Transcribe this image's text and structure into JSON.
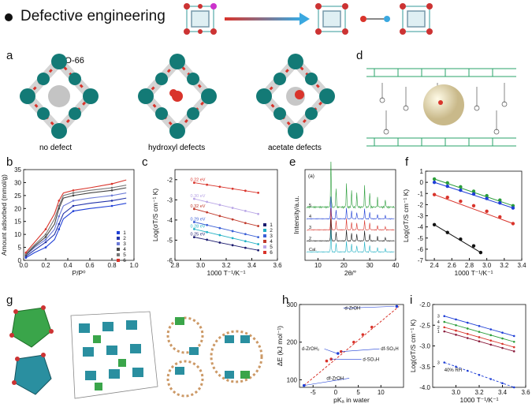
{
  "header": {
    "title": "Defective engineering"
  },
  "panels": {
    "a": {
      "label": "a",
      "uio": "UiO-66",
      "captions": [
        "no defect",
        "hydroxyl defects",
        "acetate defects"
      ]
    },
    "b": {
      "label": "b"
    },
    "c": {
      "label": "c"
    },
    "d": {
      "label": "d"
    },
    "e": {
      "label": "e"
    },
    "f": {
      "label": "f"
    },
    "g": {
      "label": "g"
    },
    "h": {
      "label": "h"
    },
    "i": {
      "label": "i"
    }
  },
  "colors": {
    "teal": "#137a76",
    "red": "#d9342b",
    "blue": "#1f3fd6",
    "green": "#2a9d3a",
    "grey": "#888888"
  },
  "chart_data": [
    {
      "id": "b",
      "type": "line",
      "xlabel": "P/P⁰",
      "ylabel": "Amount adsorbed (mmol/g)",
      "xlim": [
        0.0,
        1.0
      ],
      "ylim": [
        0,
        35
      ],
      "xticks": [
        "0.0",
        "0.2",
        "0.4",
        "0.6",
        "0.8",
        "1.0"
      ],
      "yticks": [
        "0",
        "5",
        "10",
        "15",
        "20",
        "25",
        "30",
        "35"
      ],
      "legend": [
        "1",
        "2",
        "3",
        "4",
        "5",
        "6"
      ],
      "series": [
        {
          "name": "1",
          "color": "#1f3fd6",
          "x": [
            0.02,
            0.1,
            0.2,
            0.28,
            0.32,
            0.36,
            0.45,
            0.6,
            0.8,
            0.93
          ],
          "y": [
            1,
            3,
            5,
            8,
            12,
            16,
            19,
            20,
            21,
            22
          ]
        },
        {
          "name": "2",
          "color": "#2233aa",
          "x": [
            0.02,
            0.1,
            0.2,
            0.28,
            0.32,
            0.36,
            0.45,
            0.6,
            0.8,
            0.93
          ],
          "y": [
            1.5,
            4,
            7,
            10,
            14,
            18,
            21,
            22,
            23,
            24
          ]
        },
        {
          "name": "3",
          "color": "#6b7ad6",
          "x": [
            0.02,
            0.1,
            0.2,
            0.28,
            0.32,
            0.36,
            0.45,
            0.6,
            0.8,
            0.93
          ],
          "y": [
            2,
            5,
            8,
            12,
            17,
            21,
            23,
            24,
            25,
            26
          ]
        },
        {
          "name": "4",
          "color": "#444444",
          "x": [
            0.02,
            0.1,
            0.2,
            0.28,
            0.32,
            0.36,
            0.45,
            0.6,
            0.8,
            0.93
          ],
          "y": [
            2,
            5.5,
            9,
            14,
            20,
            24,
            25,
            26,
            27,
            28
          ]
        },
        {
          "name": "5",
          "color": "#777777",
          "x": [
            0.02,
            0.1,
            0.2,
            0.28,
            0.32,
            0.36,
            0.45,
            0.6,
            0.8,
            0.93
          ],
          "y": [
            2.5,
            6,
            10,
            16,
            21,
            25,
            26,
            27,
            28,
            29
          ]
        },
        {
          "name": "6",
          "color": "#d9342b",
          "x": [
            0.02,
            0.1,
            0.2,
            0.28,
            0.32,
            0.36,
            0.45,
            0.6,
            0.8,
            0.93
          ],
          "y": [
            3,
            7,
            12,
            18,
            23,
            26,
            27,
            28,
            29.5,
            31
          ]
        }
      ]
    },
    {
      "id": "c",
      "type": "line",
      "xlabel": "1000 T⁻¹/K⁻¹",
      "ylabel": "Log(σT/S cm⁻¹ K)",
      "xlim": [
        2.8,
        3.6
      ],
      "ylim": [
        -6,
        -1.5
      ],
      "xticks": [
        "2.8",
        "3.0",
        "3.2",
        "3.4",
        "3.6"
      ],
      "yticks": [
        "-2",
        "-3",
        "-4",
        "-5",
        "-6"
      ],
      "legend": [
        "1",
        "2",
        "3",
        "4",
        "5",
        "6"
      ],
      "annotations": [
        "0.22 eV",
        "0.30 eV",
        "0.32 eV",
        "0.29 eV",
        "0.28 eV",
        "0.25 eV"
      ],
      "series": [
        {
          "name": "6",
          "color": "#d9342b",
          "x": [
            2.95,
            3.05,
            3.15,
            3.25,
            3.35,
            3.45
          ],
          "y": [
            -2.15,
            -2.25,
            -2.35,
            -2.45,
            -2.55,
            -2.65
          ]
        },
        {
          "name": "5",
          "color": "#b9a6e6",
          "x": [
            2.95,
            3.05,
            3.15,
            3.25,
            3.35,
            3.45
          ],
          "y": [
            -2.95,
            -3.1,
            -3.25,
            -3.4,
            -3.55,
            -3.7
          ]
        },
        {
          "name": "4",
          "color": "#c0392b",
          "x": [
            2.95,
            3.05,
            3.15,
            3.25,
            3.35,
            3.45
          ],
          "y": [
            -3.45,
            -3.62,
            -3.8,
            -3.97,
            -4.15,
            -4.3
          ]
        },
        {
          "name": "3",
          "color": "#3a5fd6",
          "x": [
            2.95,
            3.05,
            3.15,
            3.25,
            3.35,
            3.45
          ],
          "y": [
            -4.1,
            -4.25,
            -4.4,
            -4.55,
            -4.7,
            -4.85
          ]
        },
        {
          "name": "2",
          "color": "#21b0c4",
          "x": [
            2.95,
            3.05,
            3.15,
            3.25,
            3.35,
            3.45
          ],
          "y": [
            -4.45,
            -4.6,
            -4.75,
            -4.9,
            -5.05,
            -5.2
          ]
        },
        {
          "name": "1",
          "color": "#1a1a6e",
          "x": [
            2.95,
            3.05,
            3.15,
            3.25,
            3.35,
            3.45
          ],
          "y": [
            -4.85,
            -4.98,
            -5.12,
            -5.25,
            -5.38,
            -5.5
          ]
        }
      ]
    },
    {
      "id": "e",
      "type": "line",
      "xlabel": "2θ/°",
      "ylabel": "Intensity/a.u.",
      "xlim": [
        5,
        40
      ],
      "xticks": [
        "10",
        "20",
        "30",
        "40"
      ],
      "traces": [
        "5",
        "4",
        "3",
        "2",
        "Cal."
      ],
      "note": "(a)"
    },
    {
      "id": "f",
      "type": "scatter",
      "xlabel": "1000 T⁻¹/K⁻¹",
      "ylabel": "Log(σT/S cm⁻¹ K)",
      "xlim": [
        2.3,
        3.4
      ],
      "ylim": [
        -7,
        1
      ],
      "xticks": [
        "2.4",
        "2.6",
        "2.8",
        "3.0",
        "3.2",
        "3.4"
      ],
      "yticks": [
        "1",
        "0",
        "-1",
        "-2",
        "-3",
        "-4",
        "-5",
        "-6",
        "-7"
      ],
      "series": [
        {
          "color": "#2a9d3a",
          "x": [
            2.4,
            2.55,
            2.7,
            2.85,
            3.0,
            3.15,
            3.3
          ],
          "y": [
            0.3,
            -0.05,
            -0.4,
            -0.8,
            -1.2,
            -1.6,
            -2.1
          ]
        },
        {
          "color": "#1f3fd6",
          "x": [
            2.4,
            2.55,
            2.7,
            2.85,
            3.0,
            3.15,
            3.3
          ],
          "y": [
            0.0,
            -0.35,
            -0.7,
            -1.05,
            -1.45,
            -1.85,
            -2.3
          ]
        },
        {
          "color": "#d9342b",
          "x": [
            2.4,
            2.55,
            2.7,
            2.85,
            3.0,
            3.15,
            3.3
          ],
          "y": [
            -1.1,
            -1.35,
            -1.7,
            -2.1,
            -2.6,
            -3.1,
            -3.7
          ]
        },
        {
          "color": "#111111",
          "x": [
            2.4,
            2.55,
            2.7,
            2.85,
            2.93
          ],
          "y": [
            -3.8,
            -4.5,
            -5.1,
            -5.7,
            -6.3
          ]
        }
      ]
    },
    {
      "id": "h",
      "type": "scatter",
      "xlabel": "pKₐ in water",
      "ylabel": "ΔE (kJ mol⁻¹)",
      "xlim": [
        -8,
        15
      ],
      "ylim": [
        80,
        300
      ],
      "xticks": [
        "-5",
        "0",
        "5",
        "10"
      ],
      "yticks": [
        "100",
        "200",
        "300"
      ],
      "labels": [
        "d-ZrOH",
        "d-ZrOH₂",
        "df-SO₃H",
        "d-SO₃H",
        "df-ZrOH"
      ]
    },
    {
      "id": "i",
      "type": "line",
      "xlabel": "1000 T⁻¹/K⁻¹",
      "ylabel": "Log(σT/S cm⁻¹ K)",
      "xlim": [
        2.8,
        3.6
      ],
      "ylim": [
        -4.0,
        -2.0
      ],
      "xticks": [
        "3.0",
        "3.2",
        "3.4",
        "3.6"
      ],
      "yticks": [
        "-2.0",
        "-2.5",
        "-3.0",
        "-3.5",
        "-4.0"
      ],
      "annotation": "40% RH",
      "series": [
        {
          "name": "3",
          "color": "#1f3fd6",
          "x": [
            2.9,
            3.0,
            3.1,
            3.2,
            3.3,
            3.4,
            3.5
          ],
          "y": [
            -2.28,
            -2.36,
            -2.44,
            -2.52,
            -2.6,
            -2.68,
            -2.76
          ]
        },
        {
          "name": "4",
          "color": "#2a9d3a",
          "x": [
            2.9,
            3.0,
            3.1,
            3.2,
            3.3,
            3.4,
            3.5
          ],
          "y": [
            -2.42,
            -2.5,
            -2.58,
            -2.66,
            -2.74,
            -2.82,
            -2.9
          ]
        },
        {
          "name": "2",
          "color": "#d9342b",
          "x": [
            2.9,
            3.0,
            3.1,
            3.2,
            3.3,
            3.4,
            3.5
          ],
          "y": [
            -2.55,
            -2.63,
            -2.71,
            -2.79,
            -2.87,
            -2.95,
            -3.03
          ]
        },
        {
          "name": "1",
          "color": "#8a1a3a",
          "x": [
            2.9,
            3.0,
            3.1,
            3.2,
            3.3,
            3.4,
            3.5
          ],
          "y": [
            -2.65,
            -2.73,
            -2.81,
            -2.89,
            -2.97,
            -3.05,
            -3.13
          ]
        },
        {
          "name": "3",
          "color": "#1f3fd6",
          "dashed": true,
          "x": [
            2.9,
            3.0,
            3.1,
            3.2,
            3.3,
            3.4,
            3.5
          ],
          "y": [
            -3.4,
            -3.5,
            -3.6,
            -3.7,
            -3.8,
            -3.9,
            -4.0
          ]
        }
      ]
    }
  ]
}
